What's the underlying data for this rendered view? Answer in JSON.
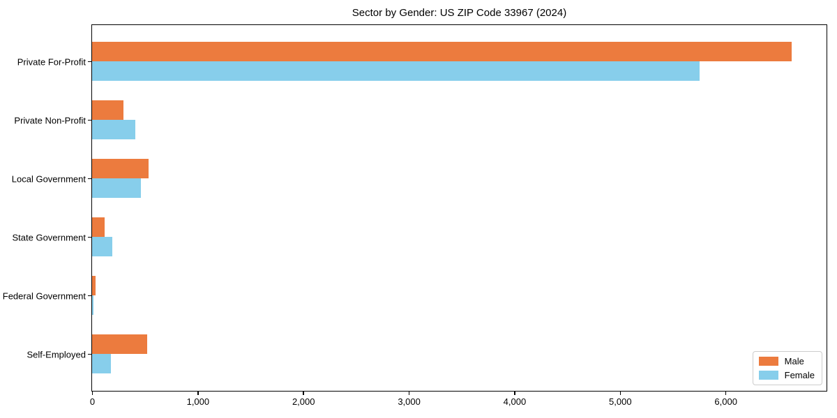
{
  "chart_data": {
    "type": "bar",
    "orientation": "horizontal",
    "title": "Sector by Gender: US ZIP Code 33967 (2024)",
    "categories": [
      "Private For-Profit",
      "Private Non-Profit",
      "Local Government",
      "State Government",
      "Federal Government",
      "Self-Employed"
    ],
    "series": [
      {
        "name": "Male",
        "color": "#ec7b3e",
        "values": [
          6617,
          300,
          535,
          118,
          32,
          520
        ]
      },
      {
        "name": "Female",
        "color": "#87ceeb",
        "values": [
          5752,
          410,
          460,
          190,
          12,
          180
        ]
      }
    ],
    "xlabel": "",
    "ylabel": "",
    "xlim": [
      0,
      6950
    ],
    "xticks": [
      0,
      1000,
      2000,
      3000,
      4000,
      5000,
      6000
    ],
    "xtick_labels": [
      "0",
      "1,000",
      "2,000",
      "3,000",
      "4,000",
      "5,000",
      "6,000"
    ],
    "legend_position": "lower right",
    "grid": false,
    "colors": {
      "axis": "#000000",
      "background": "#ffffff",
      "legend_border": "#cccccc"
    }
  }
}
